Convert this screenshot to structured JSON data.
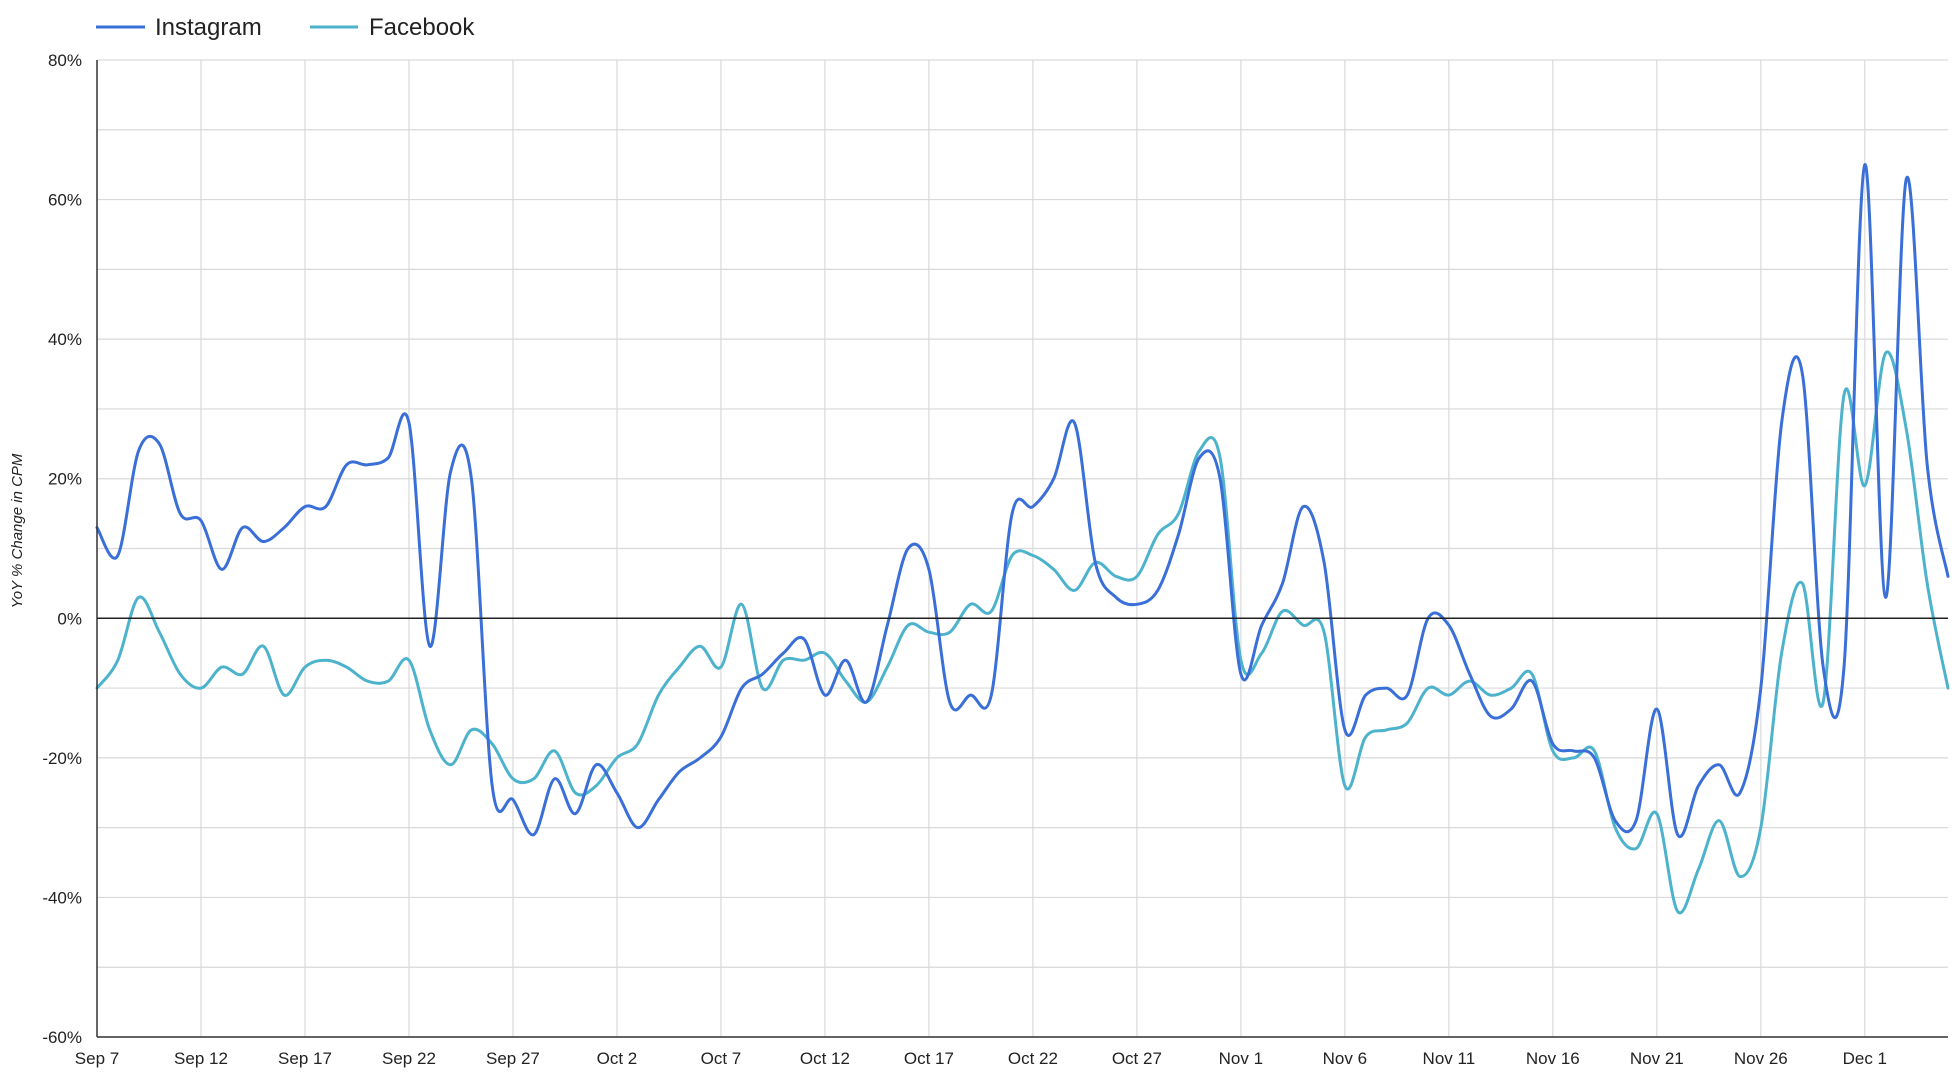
{
  "chart_data": {
    "type": "line",
    "ylabel": "YoY % Change in CPM",
    "xlabel": "",
    "ylim": [
      -60,
      80
    ],
    "y_ticks": [
      "80%",
      "60%",
      "40%",
      "20%",
      "0%",
      "-20%",
      "-40%",
      "-60%"
    ],
    "x_tick_labels": [
      "Sep 7",
      "Sep 12",
      "Sep 17",
      "Sep 22",
      "Sep 27",
      "Oct 2",
      "Oct 7",
      "Oct 12",
      "Oct 17",
      "Oct 22",
      "Oct 27",
      "Nov 1",
      "Nov 6",
      "Nov 11",
      "Nov 16",
      "Nov 21",
      "Nov 26",
      "Dec 1"
    ],
    "x_tick_days": [
      0,
      5,
      10,
      15,
      20,
      25,
      30,
      35,
      40,
      45,
      50,
      55,
      60,
      65,
      70,
      75,
      80,
      85
    ],
    "legend_position": "top-left",
    "grid": true,
    "series": [
      {
        "name": "Instagram",
        "color": "#3a6fd8",
        "x": [
          0,
          1,
          2,
          3,
          4,
          5,
          6,
          7,
          8,
          9,
          10,
          11,
          12,
          13,
          14,
          15,
          16,
          17,
          18,
          19,
          20,
          21,
          22,
          23,
          24,
          25,
          26,
          27,
          28,
          29,
          30,
          31,
          32,
          33,
          34,
          35,
          36,
          37,
          38,
          39,
          40,
          41,
          42,
          43,
          44,
          45,
          46,
          47,
          48,
          49,
          50,
          51,
          52,
          53,
          54,
          55,
          56,
          57,
          58,
          59,
          60,
          61,
          62,
          63,
          64,
          65,
          66,
          67,
          68,
          69,
          70,
          71,
          72,
          73,
          74,
          75,
          76,
          77,
          78,
          79,
          80,
          81,
          82,
          83,
          84,
          85,
          86,
          87,
          88,
          89
        ],
        "values": [
          13,
          9,
          24,
          25,
          15,
          14,
          7,
          13,
          11,
          13,
          16,
          16,
          22,
          22,
          23,
          28,
          -4,
          21,
          20,
          -24,
          -26,
          -31,
          -23,
          -28,
          -21,
          -25,
          -30,
          -26,
          -22,
          -20,
          -17,
          -10,
          -8,
          -5,
          -3,
          -11,
          -6,
          -12,
          -1,
          10,
          7,
          -12,
          -11,
          -11,
          15,
          16,
          20,
          28,
          8,
          3,
          2,
          4,
          12,
          23,
          20,
          -8,
          -1,
          5,
          16,
          8,
          -16,
          -11,
          -10,
          -11,
          0,
          -1,
          -8,
          -14,
          -13,
          -9,
          -18,
          -19,
          -20,
          -29,
          -29,
          -13,
          -31,
          -24,
          -21,
          -25,
          -10,
          28,
          35,
          -7,
          -7,
          65,
          3,
          63,
          22,
          6
        ]
      },
      {
        "name": "Facebook",
        "color": "#4db3cc",
        "x": [
          0,
          1,
          2,
          3,
          4,
          5,
          6,
          7,
          8,
          9,
          10,
          11,
          12,
          13,
          14,
          15,
          16,
          17,
          18,
          19,
          20,
          21,
          22,
          23,
          24,
          25,
          26,
          27,
          28,
          29,
          30,
          31,
          32,
          33,
          34,
          35,
          36,
          37,
          38,
          39,
          40,
          41,
          42,
          43,
          44,
          45,
          46,
          47,
          48,
          49,
          50,
          51,
          52,
          53,
          54,
          55,
          56,
          57,
          58,
          59,
          60,
          61,
          62,
          63,
          64,
          65,
          66,
          67,
          68,
          69,
          70,
          71,
          72,
          73,
          74,
          75,
          76,
          77,
          78,
          79,
          80,
          81,
          82,
          83,
          84,
          85,
          86,
          87,
          88,
          89
        ],
        "values": [
          -10,
          -6,
          3,
          -2,
          -8,
          -10,
          -7,
          -8,
          -4,
          -11,
          -7,
          -6,
          -7,
          -9,
          -9,
          -6,
          -16,
          -21,
          -16,
          -18,
          -23,
          -23,
          -19,
          -25,
          -24,
          -20,
          -18,
          -11,
          -7,
          -4,
          -7,
          2,
          -10,
          -6,
          -6,
          -5,
          -9,
          -12,
          -7,
          -1,
          -2,
          -2,
          2,
          1,
          9,
          9,
          7,
          4,
          8,
          6,
          6,
          12,
          15,
          24,
          23,
          -6,
          -5,
          1,
          -1,
          -2,
          -24,
          -17,
          -16,
          -15,
          -10,
          -11,
          -9,
          -11,
          -10,
          -8,
          -19,
          -20,
          -19,
          -30,
          -33,
          -28,
          -42,
          -36,
          -29,
          -37,
          -30,
          -5,
          5,
          -12,
          32,
          19,
          38,
          27,
          5,
          -10
        ]
      }
    ]
  }
}
